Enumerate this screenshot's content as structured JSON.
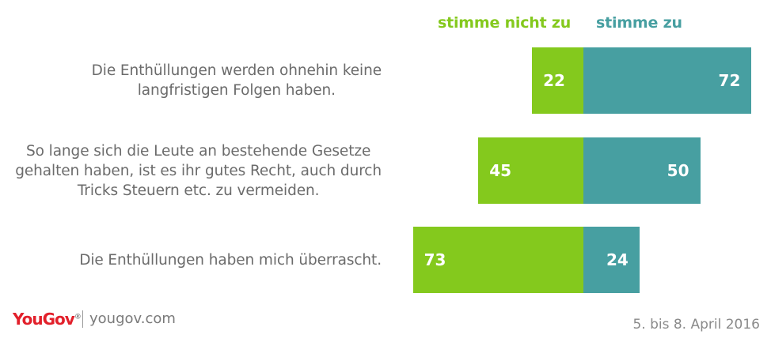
{
  "chart_data": {
    "type": "bar",
    "orientation": "horizontal-diverging",
    "categories": [
      "Die Enthüllungen werden ohnehin keine langfristigen Folgen haben.",
      "So lange sich die Leute an bestehende Gesetze gehalten haben, ist es ihr gutes Recht, auch durch Tricks Steuern etc. zu vermeiden.",
      "Die Enthüllungen haben mich überrascht."
    ],
    "category_lines": [
      [
        "Die Enthüllungen werden ohnehin keine",
        "langfristigen Folgen haben."
      ],
      [
        "So lange sich die Leute an bestehende Gesetze",
        "gehalten haben, ist es ihr gutes Recht, auch durch",
        "Tricks Steuern etc. zu vermeiden."
      ],
      [
        "Die Enthüllungen haben mich überrascht."
      ]
    ],
    "series": [
      {
        "name": "stimme nicht zu",
        "values": [
          22,
          45,
          73
        ],
        "color": "#84c91d"
      },
      {
        "name": "stimme zu",
        "values": [
          72,
          50,
          24
        ],
        "color": "#479fa1"
      }
    ],
    "unit": "%",
    "grid": false,
    "legend_position": "top"
  },
  "footer": {
    "logo": "YouGov",
    "logo_mark": "®",
    "site": "yougov.com",
    "date": "5. bis 8. April 2016"
  }
}
